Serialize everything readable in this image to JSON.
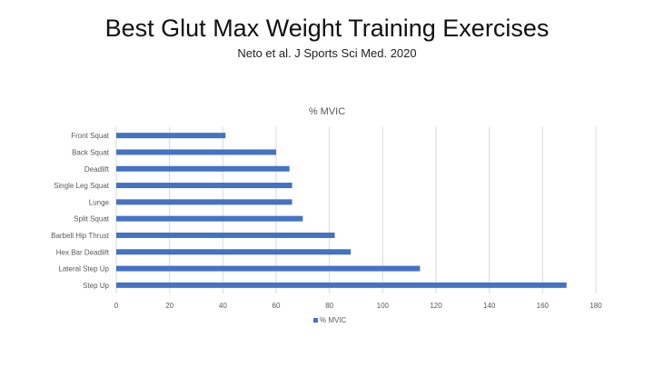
{
  "slide": {
    "title": "Best Glut Max Weight Training Exercises",
    "subtitle": "Neto et al. J Sports Sci Med. 2020"
  },
  "colors": {
    "bar": "#4472C4",
    "grid": "#D9D9D9",
    "text": "#595959"
  },
  "chart_data": {
    "type": "bar",
    "orientation": "horizontal",
    "title": "% MVIC",
    "categories": [
      "Front Squat",
      "Back Squat",
      "Deadlift",
      "Single Leg Squat",
      "Lunge",
      "Split Squat",
      "Barbell Hip Thrust",
      "Hex Bar Deadlift",
      "Lateral Step Up",
      "Step Up"
    ],
    "series": [
      {
        "name": "% MVIC",
        "values": [
          41,
          60,
          65,
          66,
          66,
          70,
          82,
          88,
          114,
          169
        ]
      }
    ],
    "xlim": [
      0,
      180
    ],
    "xticks": [
      0,
      20,
      40,
      60,
      80,
      100,
      120,
      140,
      160,
      180
    ],
    "xlabel": "",
    "ylabel": "",
    "grid": true,
    "legend": "bottom"
  }
}
